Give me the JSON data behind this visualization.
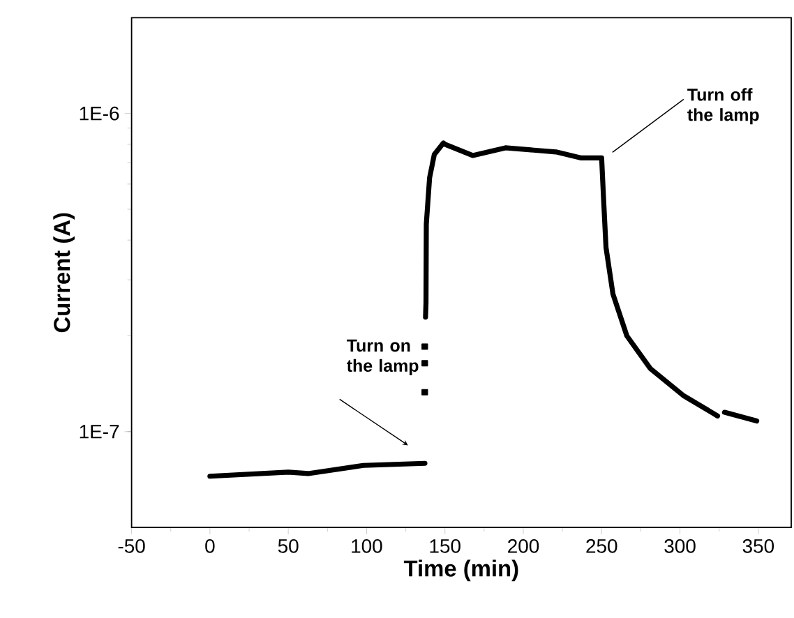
{
  "chart_data": {
    "type": "line",
    "xlabel": "Time (min)",
    "ylabel": "Current (A)",
    "log": "y",
    "xlim": [
      -50,
      371
    ],
    "ylim": [
      5e-08,
      2e-06
    ],
    "xticks": [
      -50,
      0,
      50,
      100,
      150,
      200,
      250,
      300,
      350
    ],
    "yticks": [
      {
        "value": 1e-07,
        "label": "1E-7"
      },
      {
        "value": 1e-06,
        "label": "1E-6"
      }
    ],
    "annotations": [
      "Turn on the lamp",
      "Turn off the lamp"
    ],
    "series": [
      {
        "color": "#000000",
        "x": [
          0,
          50,
          62.7,
          98,
          137.2,
          137.5,
          137.6,
          137.9,
          138.1,
          140.2,
          143.2,
          149,
          150,
          167.7,
          188.6,
          220.9,
          237,
          250,
          251.3,
          252.8,
          257.2,
          266.1,
          281,
          302,
          324,
          326,
          328.4,
          349
        ],
        "values": [
          7.24e-08,
          7.46e-08,
          7.38e-08,
          7.83e-08,
          7.95e-08,
          null,
          2.29e-07,
          2.54e-07,
          4.49e-07,
          6.28e-07,
          7.43e-07,
          8.08e-07,
          8e-07,
          7.38e-07,
          7.8e-07,
          7.57e-07,
          7.25e-07,
          7.25e-07,
          5.31e-07,
          3.79e-07,
          2.71e-07,
          2e-07,
          1.58e-07,
          1.3e-07,
          1.12e-07,
          null,
          1.15e-07,
          1.08e-07
        ]
      },
      {
        "type": "scatter",
        "marker": "square",
        "color": "#000000",
        "x": [
          137.2,
          137.2,
          137.2
        ],
        "values": [
          1.33e-07,
          1.64e-07,
          1.85e-07
        ]
      }
    ]
  }
}
